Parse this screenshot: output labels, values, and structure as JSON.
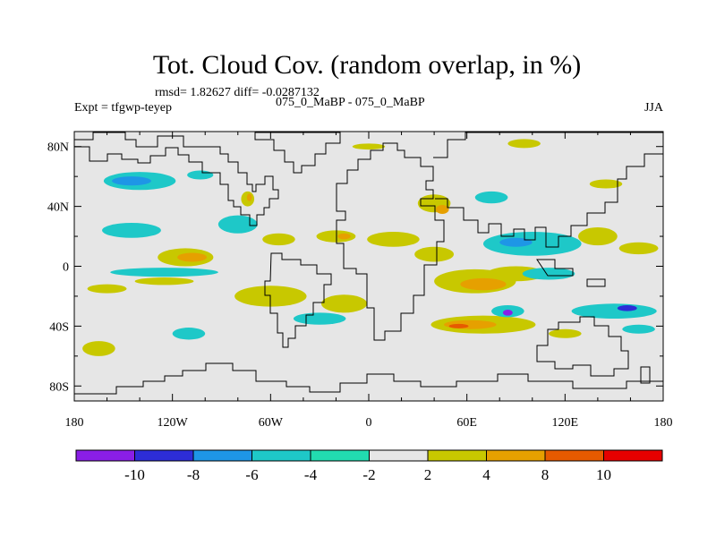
{
  "chart_data": {
    "type": "contour_map",
    "title": "Tot. Cloud Cov. (random overlap, in %)",
    "stats_label": "rmsd= 1.82627 diff= -0.0287132",
    "experiment_label": "Expt = tfgwp-teyep",
    "case_label": "075_0_MaBP - 075_0_MaBP",
    "season_label": "JJA",
    "x_range": [
      -180,
      180
    ],
    "y_range": [
      -90,
      90
    ],
    "x_ticks": [
      {
        "value": -180,
        "label": "180"
      },
      {
        "value": -120,
        "label": "120W"
      },
      {
        "value": -60,
        "label": "60W"
      },
      {
        "value": 0,
        "label": "0"
      },
      {
        "value": 60,
        "label": "60E"
      },
      {
        "value": 120,
        "label": "120E"
      },
      {
        "value": 180,
        "label": "180"
      }
    ],
    "y_ticks": [
      {
        "value": 80,
        "label": "80N"
      },
      {
        "value": 40,
        "label": "40N"
      },
      {
        "value": 0,
        "label": "0"
      },
      {
        "value": -40,
        "label": "40S"
      },
      {
        "value": -80,
        "label": "80S"
      }
    ],
    "contour_levels": [
      -10,
      -8,
      -6,
      -4,
      -2,
      2,
      4,
      8,
      10
    ],
    "colorbar_labels": [
      "-10",
      "-8",
      "-6",
      "-4",
      "-2",
      "2",
      "4",
      "8",
      "10"
    ],
    "colors": [
      "#8a1ee6",
      "#2d2dd7",
      "#1e96e6",
      "#1ec8c8",
      "#22dcb0",
      "#e6e6e6",
      "#c8c800",
      "#e6a000",
      "#e65a00",
      "#e60000"
    ],
    "regions": [
      {
        "lon": -140,
        "lat": 57,
        "rx": 22,
        "ry": 6,
        "level": 3,
        "label": "-4"
      },
      {
        "lon": -145,
        "lat": 57,
        "rx": 12,
        "ry": 3,
        "level": 2,
        "label": "-6"
      },
      {
        "lon": -103,
        "lat": 61,
        "rx": 8,
        "ry": 3,
        "level": 3
      },
      {
        "lon": -74,
        "lat": 45,
        "rx": 4,
        "ry": 5,
        "level": 6,
        "label": "4"
      },
      {
        "lon": -73,
        "lat": 46,
        "rx": 1.5,
        "ry": 2.5,
        "level": 7,
        "label": "8"
      },
      {
        "lon": -145,
        "lat": 24,
        "rx": 18,
        "ry": 5,
        "level": 3
      },
      {
        "lon": -112,
        "lat": 6,
        "rx": 17,
        "ry": 6,
        "level": 6
      },
      {
        "lon": -108,
        "lat": 6,
        "rx": 9,
        "ry": 3,
        "level": 7
      },
      {
        "lon": -125,
        "lat": -4,
        "rx": 33,
        "ry": 3,
        "level": 3
      },
      {
        "lon": -125,
        "lat": -10,
        "rx": 18,
        "ry": 2.5,
        "level": 6
      },
      {
        "lon": -160,
        "lat": -15,
        "rx": 12,
        "ry": 3,
        "level": 6
      },
      {
        "lon": -80,
        "lat": 28,
        "rx": 12,
        "ry": 6,
        "level": 3
      },
      {
        "lon": -55,
        "lat": 18,
        "rx": 10,
        "ry": 4,
        "level": 6
      },
      {
        "lon": -20,
        "lat": 20,
        "rx": 12,
        "ry": 4,
        "level": 6
      },
      {
        "lon": -15,
        "lat": 20,
        "rx": 4,
        "ry": 2,
        "level": 7
      },
      {
        "lon": 15,
        "lat": 18,
        "rx": 16,
        "ry": 5,
        "level": 6
      },
      {
        "lon": 40,
        "lat": 42,
        "rx": 10,
        "ry": 6,
        "level": 6
      },
      {
        "lon": 45,
        "lat": 38,
        "rx": 4,
        "ry": 3,
        "level": 7
      },
      {
        "lon": 40,
        "lat": 8,
        "rx": 12,
        "ry": 5,
        "level": 6
      },
      {
        "lon": -60,
        "lat": -20,
        "rx": 22,
        "ry": 7,
        "level": 6
      },
      {
        "lon": -15,
        "lat": -25,
        "rx": 14,
        "ry": 6,
        "level": 6
      },
      {
        "lon": -30,
        "lat": -35,
        "rx": 16,
        "ry": 4,
        "level": 3
      },
      {
        "lon": 75,
        "lat": 46,
        "rx": 10,
        "ry": 4,
        "level": 3
      },
      {
        "lon": 100,
        "lat": 15,
        "rx": 30,
        "ry": 8,
        "level": 3
      },
      {
        "lon": 90,
        "lat": 16,
        "rx": 10,
        "ry": 3,
        "level": 2
      },
      {
        "lon": 140,
        "lat": 20,
        "rx": 12,
        "ry": 6,
        "level": 6
      },
      {
        "lon": 90,
        "lat": -5,
        "rx": 18,
        "ry": 5,
        "level": 6
      },
      {
        "lon": 110,
        "lat": -5,
        "rx": 16,
        "ry": 4,
        "level": 3
      },
      {
        "lon": 165,
        "lat": 12,
        "rx": 12,
        "ry": 4,
        "level": 6
      },
      {
        "lon": 65,
        "lat": -10,
        "rx": 25,
        "ry": 8,
        "level": 6
      },
      {
        "lon": 70,
        "lat": -12,
        "rx": 14,
        "ry": 4,
        "level": 7
      },
      {
        "lon": 70,
        "lat": -39,
        "rx": 32,
        "ry": 6,
        "level": 6
      },
      {
        "lon": 62,
        "lat": -39,
        "rx": 16,
        "ry": 3,
        "level": 7
      },
      {
        "lon": 55,
        "lat": -40,
        "rx": 6,
        "ry": 1.5,
        "level": 8,
        "label": "10"
      },
      {
        "lon": 85,
        "lat": -30,
        "rx": 10,
        "ry": 4,
        "level": 3
      },
      {
        "lon": 85,
        "lat": -31,
        "rx": 3,
        "ry": 2,
        "level": 0,
        "label": "-10"
      },
      {
        "lon": 150,
        "lat": -30,
        "rx": 26,
        "ry": 5,
        "level": 3
      },
      {
        "lon": 158,
        "lat": -28,
        "rx": 6,
        "ry": 2,
        "level": 1,
        "label": "-8"
      },
      {
        "lon": 165,
        "lat": -42,
        "rx": 10,
        "ry": 3,
        "level": 3
      },
      {
        "lon": -165,
        "lat": -55,
        "rx": 10,
        "ry": 5,
        "level": 6
      },
      {
        "lon": -110,
        "lat": -45,
        "rx": 10,
        "ry": 4,
        "level": 3
      },
      {
        "lon": 120,
        "lat": -45,
        "rx": 10,
        "ry": 3,
        "level": 6
      },
      {
        "lon": 0,
        "lat": 80,
        "rx": 10,
        "ry": 2,
        "level": 6
      },
      {
        "lon": 95,
        "lat": 82,
        "rx": 10,
        "ry": 3,
        "level": 6
      },
      {
        "lon": 145,
        "lat": 55,
        "rx": 10,
        "ry": 3,
        "level": 6
      }
    ]
  }
}
